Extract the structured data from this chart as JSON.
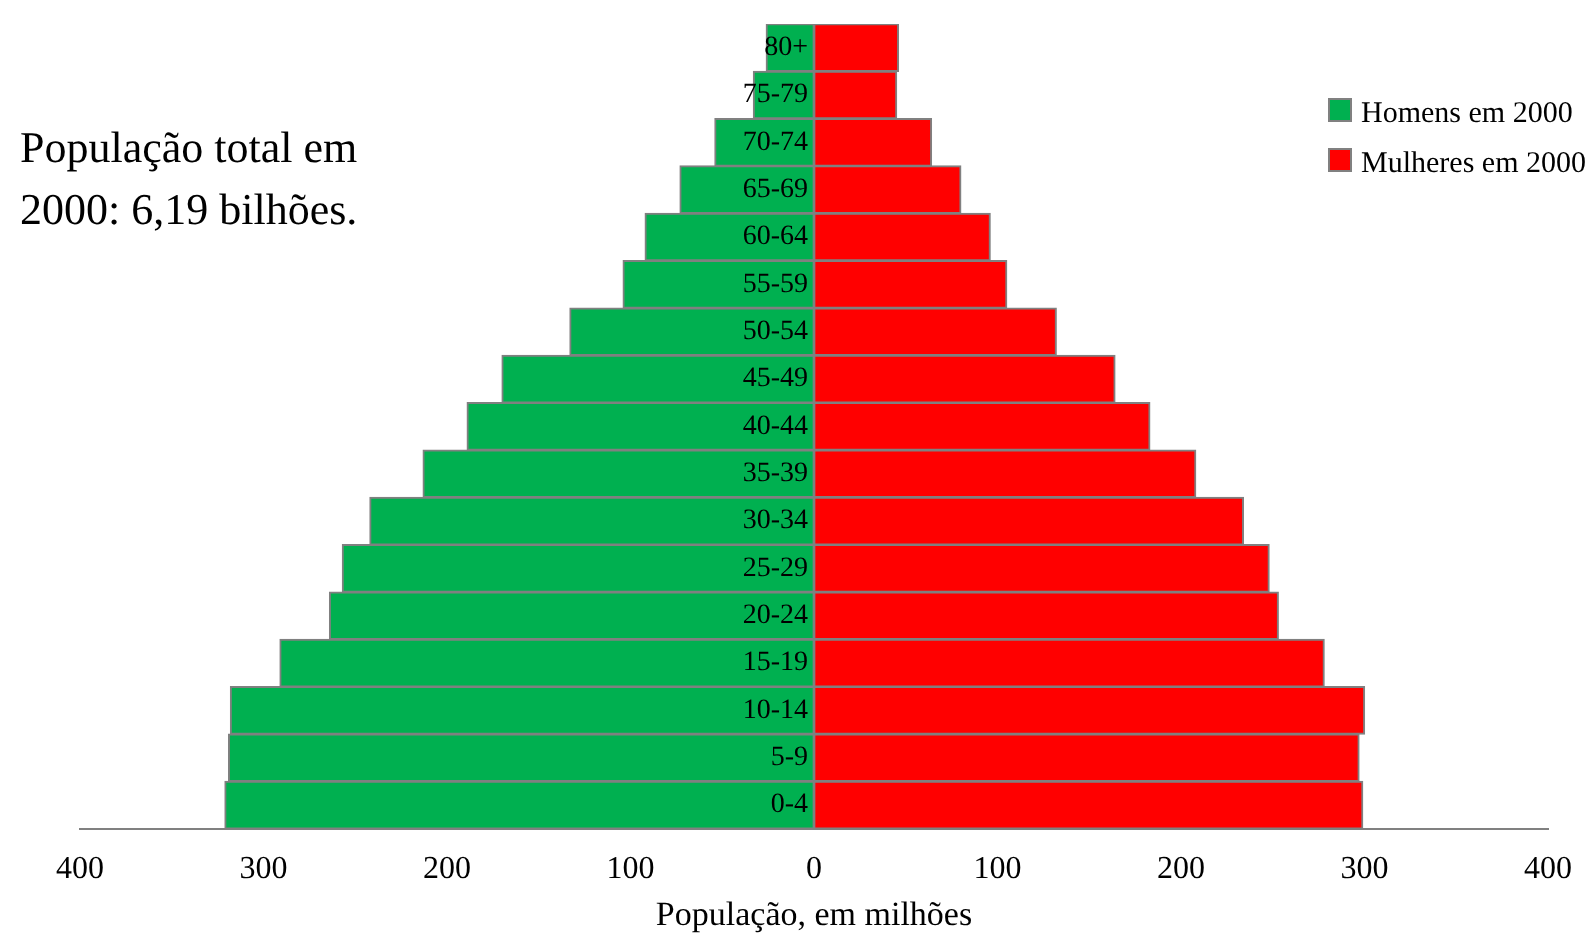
{
  "chart_data": {
    "type": "bar",
    "orientation": "horizontal",
    "stacked": true,
    "xlabel": "População, em milhões",
    "annotations": [
      "População total em 2000: 6,19 bilhões."
    ],
    "categories": [
      "80+",
      "75-79",
      "70-74",
      "65-69",
      "60-64",
      "55-59",
      "50-54",
      "45-49",
      "40-44",
      "35-39",
      "30-34",
      "25-29",
      "20-24",
      "15-19",
      "10-14",
      "5-9",
      "0-4"
    ],
    "series": [
      {
        "name": "Homens em 2000",
        "color": "#00b050",
        "values": [
          -26,
          -33,
          -54,
          -73,
          -92,
          -104,
          -133,
          -170,
          -189,
          -213,
          -242,
          -257,
          -264,
          -291,
          -318,
          -319,
          -321
        ]
      },
      {
        "name": "Mulheres em 2000",
        "color": "#ff0000",
        "values": [
          46,
          45,
          64,
          80,
          96,
          105,
          132,
          164,
          183,
          208,
          234,
          248,
          253,
          278,
          300,
          297,
          299
        ]
      }
    ],
    "xlim": [
      -400,
      400
    ],
    "xticks": [
      {
        "value": -400,
        "label": "400"
      },
      {
        "value": -300,
        "label": "300"
      },
      {
        "value": -200,
        "label": "200"
      },
      {
        "value": -100,
        "label": "100"
      },
      {
        "value": 0,
        "label": "0"
      },
      {
        "value": 100,
        "label": "100"
      },
      {
        "value": 200,
        "label": "200"
      },
      {
        "value": 300,
        "label": "300"
      },
      {
        "value": 400,
        "label": "400"
      }
    ],
    "legend": "top right",
    "grid": false
  }
}
